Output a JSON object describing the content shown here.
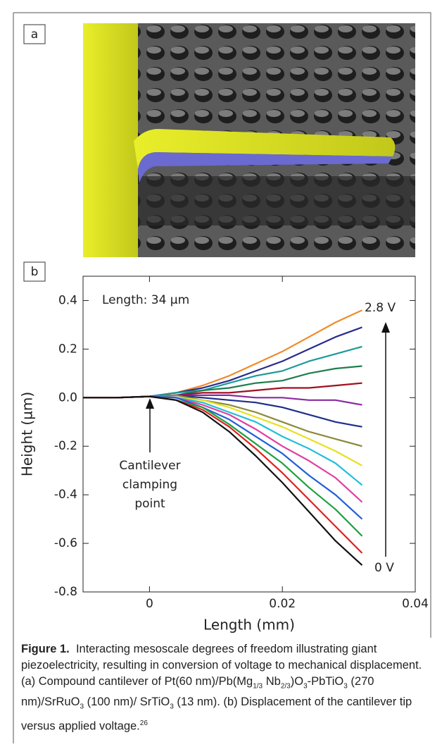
{
  "panel_labels": [
    "a",
    "b"
  ],
  "chart_data": {
    "type": "line",
    "xlabel": "Length (mm)",
    "ylabel": "Height (µm)",
    "x": [
      -0.01,
      -0.005,
      0,
      0.004,
      0.008,
      0.012,
      0.016,
      0.02,
      0.024,
      0.028,
      0.032
    ],
    "xlim": [
      -0.01,
      0.04
    ],
    "xticks": [
      0,
      0.02,
      0.04
    ],
    "ylim": [
      -0.8,
      0.5
    ],
    "yticks": [
      -0.8,
      -0.6,
      -0.4,
      -0.2,
      {
        "value": 0,
        "label": "0.0"
      },
      0.2,
      0.4
    ],
    "annotations": [
      "Length: 34 µm",
      "2.8 V",
      "0 V",
      "Cantilever",
      "clamping",
      "point"
    ],
    "series": [
      {
        "color": "#f08a2a",
        "values": [
          0,
          0,
          0.005,
          0.02,
          0.05,
          0.09,
          0.14,
          0.19,
          0.25,
          0.31,
          0.36
        ]
      },
      {
        "color": "#2a2a8c",
        "values": [
          0,
          0,
          0.005,
          0.02,
          0.04,
          0.07,
          0.11,
          0.15,
          0.2,
          0.25,
          0.29
        ]
      },
      {
        "color": "#1a9a9a",
        "values": [
          0,
          0,
          0.005,
          0.02,
          0.03,
          0.06,
          0.09,
          0.11,
          0.15,
          0.18,
          0.21
        ]
      },
      {
        "color": "#1e7e4e",
        "values": [
          0,
          0,
          0.005,
          0.01,
          0.03,
          0.04,
          0.06,
          0.07,
          0.1,
          0.12,
          0.13
        ]
      },
      {
        "color": "#a01020",
        "values": [
          0,
          0,
          0.005,
          0.01,
          0.02,
          0.02,
          0.03,
          0.04,
          0.04,
          0.05,
          0.06
        ]
      },
      {
        "color": "#8a2aa0",
        "values": [
          0,
          0,
          0.005,
          0.01,
          0.01,
          0.01,
          0,
          0,
          -0.01,
          -0.01,
          -0.03
        ]
      },
      {
        "color": "#1e2e8c",
        "values": [
          0,
          0,
          0.005,
          0.01,
          0,
          -0.01,
          -0.02,
          -0.04,
          -0.07,
          -0.1,
          -0.12
        ]
      },
      {
        "color": "#8a8a3a",
        "values": [
          0,
          0,
          0.005,
          0.01,
          -0.01,
          -0.03,
          -0.06,
          -0.1,
          -0.14,
          -0.17,
          -0.2
        ]
      },
      {
        "color": "#e8e020",
        "values": [
          0,
          0,
          0.005,
          0,
          -0.01,
          -0.04,
          -0.08,
          -0.12,
          -0.17,
          -0.22,
          -0.28
        ]
      },
      {
        "color": "#20c0d8",
        "values": [
          0,
          0,
          0.005,
          0,
          -0.02,
          -0.06,
          -0.1,
          -0.16,
          -0.21,
          -0.27,
          -0.36
        ]
      },
      {
        "color": "#e040a0",
        "values": [
          0,
          0,
          0.005,
          0,
          -0.03,
          -0.07,
          -0.13,
          -0.2,
          -0.26,
          -0.33,
          -0.43
        ]
      },
      {
        "color": "#2060d8",
        "values": [
          0,
          0,
          0.005,
          0,
          -0.04,
          -0.09,
          -0.16,
          -0.23,
          -0.32,
          -0.4,
          -0.5
        ]
      },
      {
        "color": "#20a040",
        "values": [
          0,
          0,
          0.005,
          -0.01,
          -0.04,
          -0.11,
          -0.19,
          -0.27,
          -0.37,
          -0.46,
          -0.57
        ]
      },
      {
        "color": "#e02020",
        "values": [
          0,
          0,
          0.005,
          -0.01,
          -0.05,
          -0.12,
          -0.21,
          -0.31,
          -0.42,
          -0.53,
          -0.64
        ]
      },
      {
        "color": "#111111",
        "values": [
          0,
          0,
          0.005,
          -0.01,
          -0.06,
          -0.14,
          -0.24,
          -0.35,
          -0.47,
          -0.59,
          -0.69
        ]
      }
    ]
  },
  "caption": {
    "label": "Figure 1.",
    "runs": [
      "Interacting mesoscale degrees of freedom illustrating giant piezoelectricity, resulting in conversion of voltage to mechanical displacement. (a) Compound cantilever of Pt(60 nm)/Pb(Mg",
      "1/3",
      " Nb",
      "2/3",
      ")O",
      "3",
      "-PbTiO",
      "3",
      " (270 nm)/SrRuO",
      "3",
      " (100 nm)/ SrTiO",
      "3",
      " (13 nm). (b) Displacement of the cantilever tip versus applied voltage.",
      "26"
    ]
  }
}
